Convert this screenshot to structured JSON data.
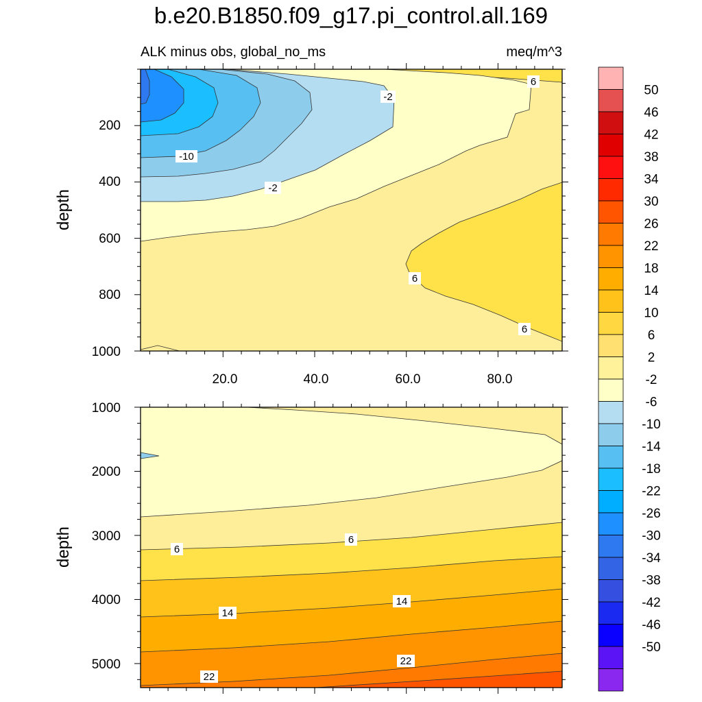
{
  "chart_data": {
    "type": "contour",
    "title": "b.e20.B1850.f09_g17.pi_control.all.169",
    "subtitle_left": "ALK minus obs, global_no_ms",
    "subtitle_right": "meq/m^3",
    "ylabel": "depth",
    "x_ticks": [
      "20.0",
      "40.0",
      "60.0",
      "80.0"
    ],
    "xlim": [
      2,
      94
    ],
    "panels": [
      {
        "name": "upper",
        "ylim": [
          0,
          1000
        ],
        "y_ticks": [
          "200",
          "400",
          "600",
          "800",
          "1000"
        ],
        "contour_labels": [
          "6",
          "-2",
          "-10",
          "-2",
          "6",
          "6"
        ]
      },
      {
        "name": "lower",
        "ylim": [
          1000,
          5375
        ],
        "y_ticks": [
          "1000",
          "2000",
          "3000",
          "4000",
          "5000"
        ],
        "contour_labels": [
          "6",
          "6",
          "14",
          "14",
          "22",
          "22"
        ]
      }
    ],
    "colorbar": {
      "levels": [
        "50",
        "46",
        "42",
        "38",
        "34",
        "30",
        "26",
        "22",
        "18",
        "14",
        "10",
        "6",
        "2",
        "-2",
        "-6",
        "-10",
        "-14",
        "-18",
        "-22",
        "-26",
        "-30",
        "-34",
        "-38",
        "-42",
        "-46",
        "-50"
      ],
      "colors": [
        "#FFB3B3",
        "#E55050",
        "#D01010",
        "#E00000",
        "#FF1010",
        "#FF2A00",
        "#FF5500",
        "#FF7A00",
        "#FF9400",
        "#FFAE00",
        "#FFC21A",
        "#FFD740",
        "#FFE070",
        "#FFF29A",
        "#FFFFC8",
        "#B4DDF2",
        "#8ECCEC",
        "#58BFF2",
        "#1BBEFF",
        "#00AEFF",
        "#1E90FF",
        "#2E78F0",
        "#3364E6",
        "#3550E0",
        "#1A2AF0",
        "#0A00FF",
        "#5A14F5",
        "#8A28F0"
      ]
    }
  }
}
